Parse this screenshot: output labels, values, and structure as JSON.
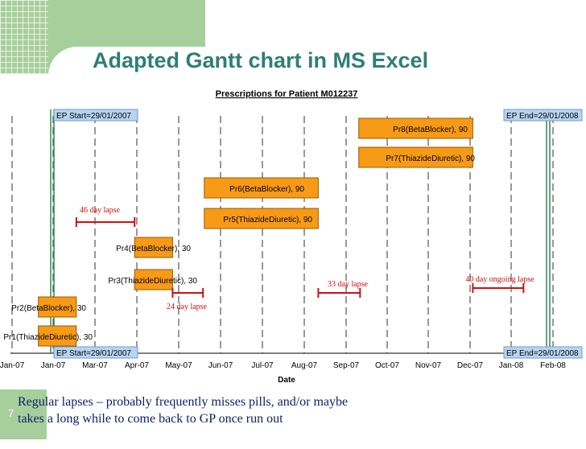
{
  "slide": {
    "title": "Adapted Gantt chart in MS Excel",
    "caption_line1": "Regular lapses – probably frequently misses pills, and/or maybe",
    "caption_line2": "takes a long while to come back to GP once run out",
    "slide_number": "7"
  },
  "colors": {
    "accent_green": "#a7cf9c",
    "title_teal": "#2e7f76",
    "bar_fill": "#f79a16",
    "bar_border": "#9a5b00",
    "ep_line": "#2e8b57",
    "lapse_red": "#d10f0f",
    "label_blue_fill": "#b8d4f0",
    "label_blue_border": "#6f9ccc"
  },
  "chart_data": {
    "type": "gantt",
    "title": "Prescriptions for Patient M012237",
    "xlabel": "Date",
    "ylabel": "",
    "x_ticks": [
      "Jan-07",
      "Jan-07",
      "Mar-07",
      "Apr-07",
      "May-07",
      "Jun-07",
      "Jul-07",
      "Aug-07",
      "Sep-07",
      "Oct-07",
      "Nov-07",
      "Dec-07",
      "Jan-08",
      "Feb-08"
    ],
    "xlim": [
      "2006-12-01",
      "2008-02-22"
    ],
    "grid": "vertical dashed",
    "tasks": [
      {
        "label": "Pr1(ThiazideDiuretic), 30",
        "start": "2006-12-23",
        "end": "2007-01-22"
      },
      {
        "label": "Pr2(BetaBlocker), 30",
        "start": "2006-12-23",
        "end": "2007-01-22"
      },
      {
        "label": "Pr3(ThiazideDiuretic), 30",
        "start": "2007-03-09",
        "end": "2007-04-08"
      },
      {
        "label": "Pr4(BetaBlocker), 30",
        "start": "2007-03-09",
        "end": "2007-04-08"
      },
      {
        "label": "Pr5(ThiazideDiuretic), 90",
        "start": "2007-05-03",
        "end": "2007-08-01"
      },
      {
        "label": "Pr6(BetaBlocker), 90",
        "start": "2007-05-03",
        "end": "2007-08-01"
      },
      {
        "label": "Pr7(ThiazideDiuretic), 90",
        "start": "2007-09-02",
        "end": "2007-12-01"
      },
      {
        "label": "Pr8(BetaBlocker), 90",
        "start": "2007-09-02",
        "end": "2007-12-01"
      }
    ],
    "episode": {
      "start_label": "EP Start=29/01/2007",
      "end_label": "EP End=29/01/2008",
      "start": "2007-01-29",
      "end": "2008-01-29"
    },
    "lapses": [
      {
        "label": "46 day lapse",
        "start": "2007-01-22",
        "end": "2007-03-09"
      },
      {
        "label": "24 day lapse",
        "start": "2007-04-08",
        "end": "2007-05-02"
      },
      {
        "label": "33 day lapse",
        "start": "2007-08-01",
        "end": "2007-09-03"
      },
      {
        "label": "40 day ongoing lapse",
        "start": "2007-12-01",
        "end": "2008-01-10"
      }
    ]
  }
}
